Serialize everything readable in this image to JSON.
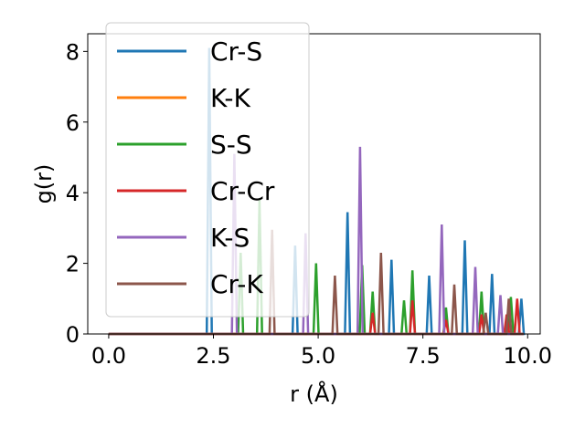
{
  "chart_data": {
    "type": "line",
    "title": "",
    "xlabel": "r (Å)",
    "ylabel": "g(r)",
    "xlim": [
      -0.5,
      10.3
    ],
    "ylim": [
      0,
      8.5
    ],
    "xticks": [
      0.0,
      2.5,
      5.0,
      7.5,
      10.0
    ],
    "xtick_labels": [
      "0.0",
      "2.5",
      "5.0",
      "7.5",
      "10.0"
    ],
    "yticks": [
      0,
      2,
      4,
      6,
      8
    ],
    "ytick_labels": [
      "0",
      "2",
      "4",
      "6",
      "8"
    ],
    "grid": false,
    "legend_position": "top-left",
    "series": [
      {
        "name": "Cr-S",
        "color": "#1f77b4",
        "peaks": [
          [
            2.4,
            8.1
          ],
          [
            4.45,
            2.5
          ],
          [
            5.7,
            3.45
          ],
          [
            6.75,
            2.1
          ],
          [
            7.65,
            1.65
          ],
          [
            8.5,
            2.65
          ],
          [
            9.15,
            1.7
          ],
          [
            9.85,
            1.0
          ]
        ]
      },
      {
        "name": "K-K",
        "color": "#ff7f0e",
        "peaks": []
      },
      {
        "name": "S-S",
        "color": "#2ca02c",
        "peaks": [
          [
            3.15,
            2.3
          ],
          [
            3.6,
            3.8
          ],
          [
            4.95,
            2.0
          ],
          [
            6.05,
            1.95
          ],
          [
            6.3,
            1.2
          ],
          [
            7.05,
            0.95
          ],
          [
            7.25,
            1.8
          ],
          [
            8.05,
            0.75
          ],
          [
            8.9,
            1.2
          ],
          [
            9.6,
            1.05
          ]
        ]
      },
      {
        "name": "Cr-Cr",
        "color": "#d62728",
        "peaks": [
          [
            6.3,
            0.6
          ],
          [
            7.25,
            0.95
          ],
          [
            8.05,
            0.4
          ],
          [
            8.9,
            0.55
          ],
          [
            9.5,
            0.55
          ],
          [
            9.75,
            1.0
          ]
        ]
      },
      {
        "name": "K-S",
        "color": "#9467bd",
        "peaks": [
          [
            3.0,
            5.1
          ],
          [
            4.7,
            2.85
          ],
          [
            6.0,
            5.3
          ],
          [
            7.95,
            3.1
          ],
          [
            8.75,
            1.9
          ],
          [
            9.35,
            1.1
          ]
        ]
      },
      {
        "name": "Cr-K",
        "color": "#8c564b",
        "peaks": [
          [
            3.9,
            2.95
          ],
          [
            5.4,
            1.65
          ],
          [
            6.5,
            2.3
          ],
          [
            8.25,
            1.4
          ],
          [
            9.0,
            0.6
          ],
          [
            9.55,
            1.0
          ]
        ]
      }
    ]
  }
}
